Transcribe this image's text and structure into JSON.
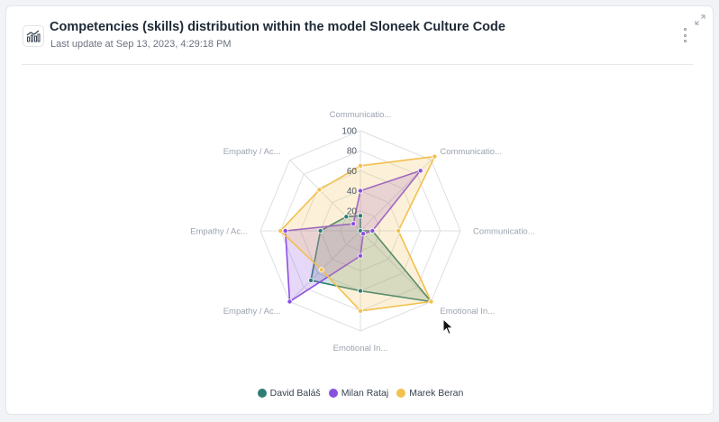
{
  "header": {
    "title": "Competencies (skills) distribution within the model Sloneek Culture Code",
    "subtitle": "Last update at Sep 13, 2023, 4:29:18 PM"
  },
  "colors": {
    "grid": "#dcdfe3",
    "axis_label": "#9ca3af",
    "tick_label": "#4b5563"
  },
  "chart_data": {
    "type": "radar",
    "categories": [
      "Communicatio...",
      "Communicatio...",
      "Communicatio...",
      "Emotional In...",
      "Emotional In...",
      "Empathy / Ac...",
      "Empathy / Ac...",
      "Empathy / Ac..."
    ],
    "rticks": [
      20,
      40,
      60,
      80,
      100
    ],
    "rlim": [
      0,
      100
    ],
    "grid": true,
    "legend_position": "bottom",
    "series": [
      {
        "name": "David Baláš",
        "color": "#2e7d74",
        "values": [
          15,
          0,
          12,
          100,
          60,
          70,
          40,
          20
        ]
      },
      {
        "name": "Milan Rataj",
        "color": "#8b4fe0",
        "values": [
          40,
          85,
          12,
          4,
          25,
          100,
          75,
          10
        ]
      },
      {
        "name": "Marek Beran",
        "color": "#f2c04d",
        "values": [
          65,
          105,
          38,
          100,
          80,
          55,
          80,
          58
        ]
      }
    ]
  }
}
